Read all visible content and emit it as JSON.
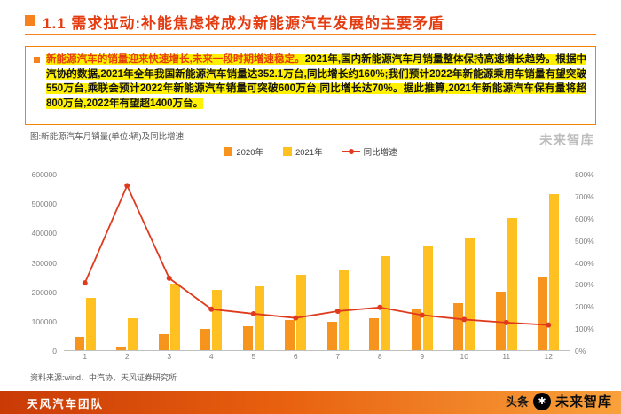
{
  "header": {
    "title": "1.1 需求拉动:补能焦虑将成为新能源汽车发展的主要矛盾",
    "accent_color": "#F5821F",
    "title_color": "#E53B10"
  },
  "summary": {
    "lead": "新能源汽车的销量迎来快速增长,未来一段时期增速稳定。",
    "body": "2021年,国内新能源汽车月销量整体保持高速增长趋势。根据中汽协的数据,2021年全年我国新能源汽车销量达352.1万台,同比增长约160%;我们预计2022年新能源乘用车销量有望突破550万台,乘联会预计2022年新能源汽车销量可突破600万台,同比增长达70%。据此推算,2021年新能源汽车保有量将超800万台,2022年有望超1400万台。",
    "highlight_color": "#FFF100"
  },
  "chart_caption": "图:新能源汽车月销量(单位:辆)及同比增速",
  "source_note": "资料来源:wind、中汽协、天风证券研究所",
  "footer": {
    "team": "天风汽车团队"
  },
  "watermarks": {
    "side": "未来智库",
    "toutiao": "头条",
    "account": "未来智库"
  },
  "chart_data": {
    "type": "bar+line",
    "title": "新能源汽车月销量(单位:辆)及同比增速",
    "categories": [
      "1",
      "2",
      "3",
      "4",
      "5",
      "6",
      "7",
      "8",
      "9",
      "10",
      "11",
      "12"
    ],
    "series": [
      {
        "key": "y2020",
        "name": "2020年",
        "type": "bar",
        "color": "#F7941D",
        "values": [
          44000,
          13000,
          53000,
          72000,
          82000,
          104000,
          98000,
          109000,
          138000,
          160000,
          200000,
          248000
        ]
      },
      {
        "key": "y2021",
        "name": "2021年",
        "type": "bar",
        "color": "#FFC122",
        "values": [
          179000,
          110000,
          226000,
          206000,
          217000,
          256000,
          271000,
          321000,
          357000,
          383000,
          450000,
          531000
        ]
      },
      {
        "key": "yoy",
        "name": "同比增速",
        "type": "line",
        "axis": "right",
        "unit": "%",
        "color": "#E03A1E",
        "values": [
          305,
          746,
          326,
          186,
          165,
          146,
          177,
          194,
          159,
          139,
          125,
          114
        ]
      }
    ],
    "left_axis": {
      "min": 0,
      "max": 600000,
      "ticks": [
        "0",
        "100000",
        "200000",
        "300000",
        "400000",
        "500000",
        "600000"
      ]
    },
    "right_axis": {
      "min": 0,
      "max": 800,
      "unit": "%",
      "ticks": [
        "0%",
        "100%",
        "200%",
        "300%",
        "400%",
        "500%",
        "600%",
        "700%",
        "800%"
      ]
    },
    "legend_position": "top-center",
    "grid": false
  }
}
